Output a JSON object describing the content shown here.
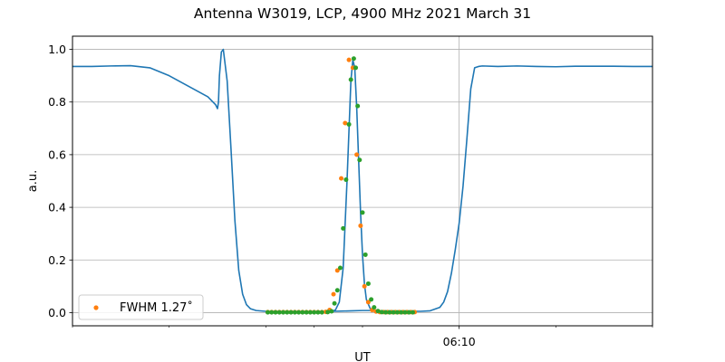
{
  "chart_data": {
    "type": "line",
    "title": "Antenna W3019, LCP, 4900 MHz 2021 March 31",
    "xlabel": "UT",
    "ylabel": "a.u.",
    "x_unit": "minutes",
    "xlim": [
      -20,
      10
    ],
    "ylim": [
      -0.05,
      1.05
    ],
    "yticks": [
      0.0,
      0.2,
      0.4,
      0.6,
      0.8,
      1.0
    ],
    "ytick_labels": [
      "0.0",
      "0.2",
      "0.4",
      "0.6",
      "0.8",
      "1.0"
    ],
    "xticks_major": [
      0
    ],
    "xtick_labels": [
      "06:10"
    ],
    "xticks_minor": [
      -20,
      -15,
      -10,
      -7.5,
      -5,
      5,
      10
    ],
    "grid": true,
    "legend": {
      "placement": "lower-left",
      "label": "FWHM 1.27$^\\circ$",
      "label_display": "FWHM 1.27˚"
    },
    "series": [
      {
        "kind": "line",
        "color": "#1f77b4",
        "x": [
          -20.0,
          -19.0,
          -18.0,
          -17.0,
          -16.0,
          -15.0,
          -14.0,
          -13.0,
          -12.6,
          -12.5,
          -12.45,
          -12.4,
          -12.3,
          -12.2,
          -12.0,
          -11.8,
          -11.6,
          -11.4,
          -11.2,
          -11.0,
          -10.8,
          -10.5,
          -10.0,
          -9.0,
          -8.0,
          -7.0,
          -6.5,
          -6.0,
          -5.5,
          -5.0,
          -4.5,
          -4.0,
          -3.5,
          -3.0,
          -2.5,
          -2.0,
          -1.5,
          -1.0,
          -0.8,
          -0.6,
          -0.4,
          -0.2,
          0.0,
          0.2,
          0.4,
          0.6,
          0.8,
          1.0,
          1.2,
          2.0,
          3.0,
          4.0,
          5.0,
          6.0,
          7.0,
          8.0,
          9.0,
          10.0
        ],
        "y": [
          0.935,
          0.935,
          0.937,
          0.938,
          0.93,
          0.9,
          0.86,
          0.82,
          0.79,
          0.775,
          0.8,
          0.9,
          0.99,
          1.0,
          0.88,
          0.62,
          0.35,
          0.16,
          0.07,
          0.03,
          0.015,
          0.008,
          0.005,
          0.004,
          0.004,
          0.004,
          0.005,
          0.006,
          0.007,
          0.008,
          0.008,
          0.007,
          0.006,
          0.005,
          0.005,
          0.005,
          0.007,
          0.02,
          0.04,
          0.08,
          0.15,
          0.24,
          0.34,
          0.48,
          0.66,
          0.85,
          0.93,
          0.935,
          0.937,
          0.935,
          0.937,
          0.935,
          0.934,
          0.936,
          0.936,
          0.936,
          0.935,
          0.935
        ]
      },
      {
        "kind": "line",
        "color": "#1f77b4",
        "x": [
          -8.0,
          -7.0,
          -6.6,
          -6.4,
          -6.2,
          -6.0,
          -5.8,
          -5.6,
          -5.5,
          -5.4,
          -5.3,
          -5.2,
          -5.1,
          -5.0,
          -4.9,
          -4.8,
          -4.6,
          -4.4,
          -4.2,
          -4.0,
          -3.6
        ],
        "y": [
          0.003,
          0.003,
          0.004,
          0.01,
          0.04,
          0.17,
          0.5,
          0.88,
          0.96,
          0.93,
          0.78,
          0.58,
          0.38,
          0.22,
          0.11,
          0.05,
          0.015,
          0.005,
          0.002,
          0.001,
          0.001
        ]
      },
      {
        "kind": "scatter",
        "name": "FWHM 1.27˚",
        "color": "#ff7f0e",
        "x": [
          -9.9,
          -9.7,
          -9.5,
          -9.3,
          -9.1,
          -8.9,
          -8.7,
          -8.5,
          -8.3,
          -8.1,
          -7.9,
          -7.7,
          -7.5,
          -7.3,
          -7.1,
          -6.9,
          -6.7,
          -6.5,
          -6.3,
          -6.1,
          -5.9,
          -5.7,
          -5.5,
          -5.3,
          -5.1,
          -4.9,
          -4.7,
          -4.5,
          -4.3,
          -4.1,
          -3.9,
          -3.7,
          -3.5,
          -3.3,
          -3.1,
          -2.9,
          -2.7,
          -2.5,
          -2.3
        ],
        "y": [
          0.002,
          0.002,
          0.002,
          0.002,
          0.002,
          0.002,
          0.002,
          0.002,
          0.002,
          0.002,
          0.002,
          0.002,
          0.002,
          0.002,
          0.002,
          0.003,
          0.01,
          0.07,
          0.16,
          0.51,
          0.72,
          0.96,
          0.93,
          0.6,
          0.33,
          0.1,
          0.04,
          0.01,
          0.004,
          0.002,
          0.002,
          0.002,
          0.002,
          0.002,
          0.002,
          0.002,
          0.002,
          0.002,
          0.002
        ]
      },
      {
        "kind": "scatter",
        "color": "#2ca02c",
        "x": [
          -9.9,
          -9.7,
          -9.5,
          -9.3,
          -9.1,
          -8.9,
          -8.7,
          -8.5,
          -8.3,
          -8.1,
          -7.9,
          -7.7,
          -7.5,
          -7.3,
          -7.1,
          -6.8,
          -6.6,
          -6.45,
          -6.3,
          -6.15,
          -6.0,
          -5.85,
          -5.7,
          -5.6,
          -5.45,
          -5.35,
          -5.25,
          -5.15,
          -5.0,
          -4.85,
          -4.7,
          -4.55,
          -4.4,
          -4.2,
          -4.0,
          -3.8,
          -3.6,
          -3.4,
          -3.2,
          -3.0,
          -2.8,
          -2.6,
          -2.4
        ],
        "y": [
          0.001,
          0.001,
          0.001,
          0.001,
          0.001,
          0.001,
          0.001,
          0.001,
          0.001,
          0.001,
          0.001,
          0.001,
          0.001,
          0.001,
          0.001,
          0.002,
          0.005,
          0.035,
          0.085,
          0.17,
          0.32,
          0.505,
          0.715,
          0.885,
          0.965,
          0.93,
          0.785,
          0.58,
          0.38,
          0.22,
          0.11,
          0.05,
          0.02,
          0.006,
          0.002,
          0.001,
          0.001,
          0.001,
          0.001,
          0.001,
          0.001,
          0.001,
          0.001
        ]
      }
    ]
  }
}
